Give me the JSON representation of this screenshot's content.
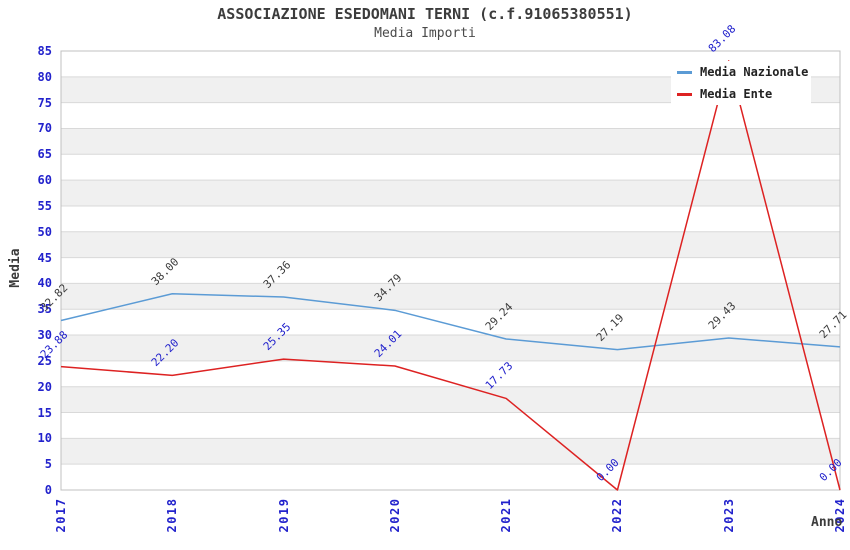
{
  "header": {
    "title": "ASSOCIAZIONE ESEDOMANI TERNI (c.f.91065380551)",
    "subtitle": "Media Importi"
  },
  "legend": {
    "items": [
      {
        "label": "Media Nazionale",
        "color": "#5b9bd5"
      },
      {
        "label": "Media Ente",
        "color": "#dd2222"
      }
    ]
  },
  "chart_data": {
    "type": "line",
    "title": "ASSOCIAZIONE ESEDOMANI TERNI (c.f.91065380551)",
    "subtitle": "Media Importi",
    "xlabel": "Anno",
    "ylabel": "Media",
    "x": [
      2017,
      2018,
      2019,
      2020,
      2021,
      2022,
      2023,
      2024
    ],
    "series": [
      {
        "name": "Media Nazionale",
        "color": "#5b9bd5",
        "label_color": "#3c3c3c",
        "values": [
          32.82,
          38.0,
          37.36,
          34.79,
          29.24,
          27.19,
          29.43,
          27.71
        ]
      },
      {
        "name": "Media Ente",
        "color": "#dd2222",
        "label_color": "#2222cc",
        "values": [
          23.88,
          22.2,
          25.35,
          24.01,
          17.73,
          0.0,
          83.08,
          0.0
        ]
      }
    ],
    "ylim": [
      0,
      85
    ],
    "ytick_step": 5,
    "value_label_decimals": 2,
    "grid": "horizontal-bands",
    "legend_position": "top-right",
    "colors": {
      "tick_label": "#2222cc",
      "band": "#f0f0f0",
      "gridline": "#d9d9d9",
      "plot_border": "#c0c0c0"
    }
  }
}
